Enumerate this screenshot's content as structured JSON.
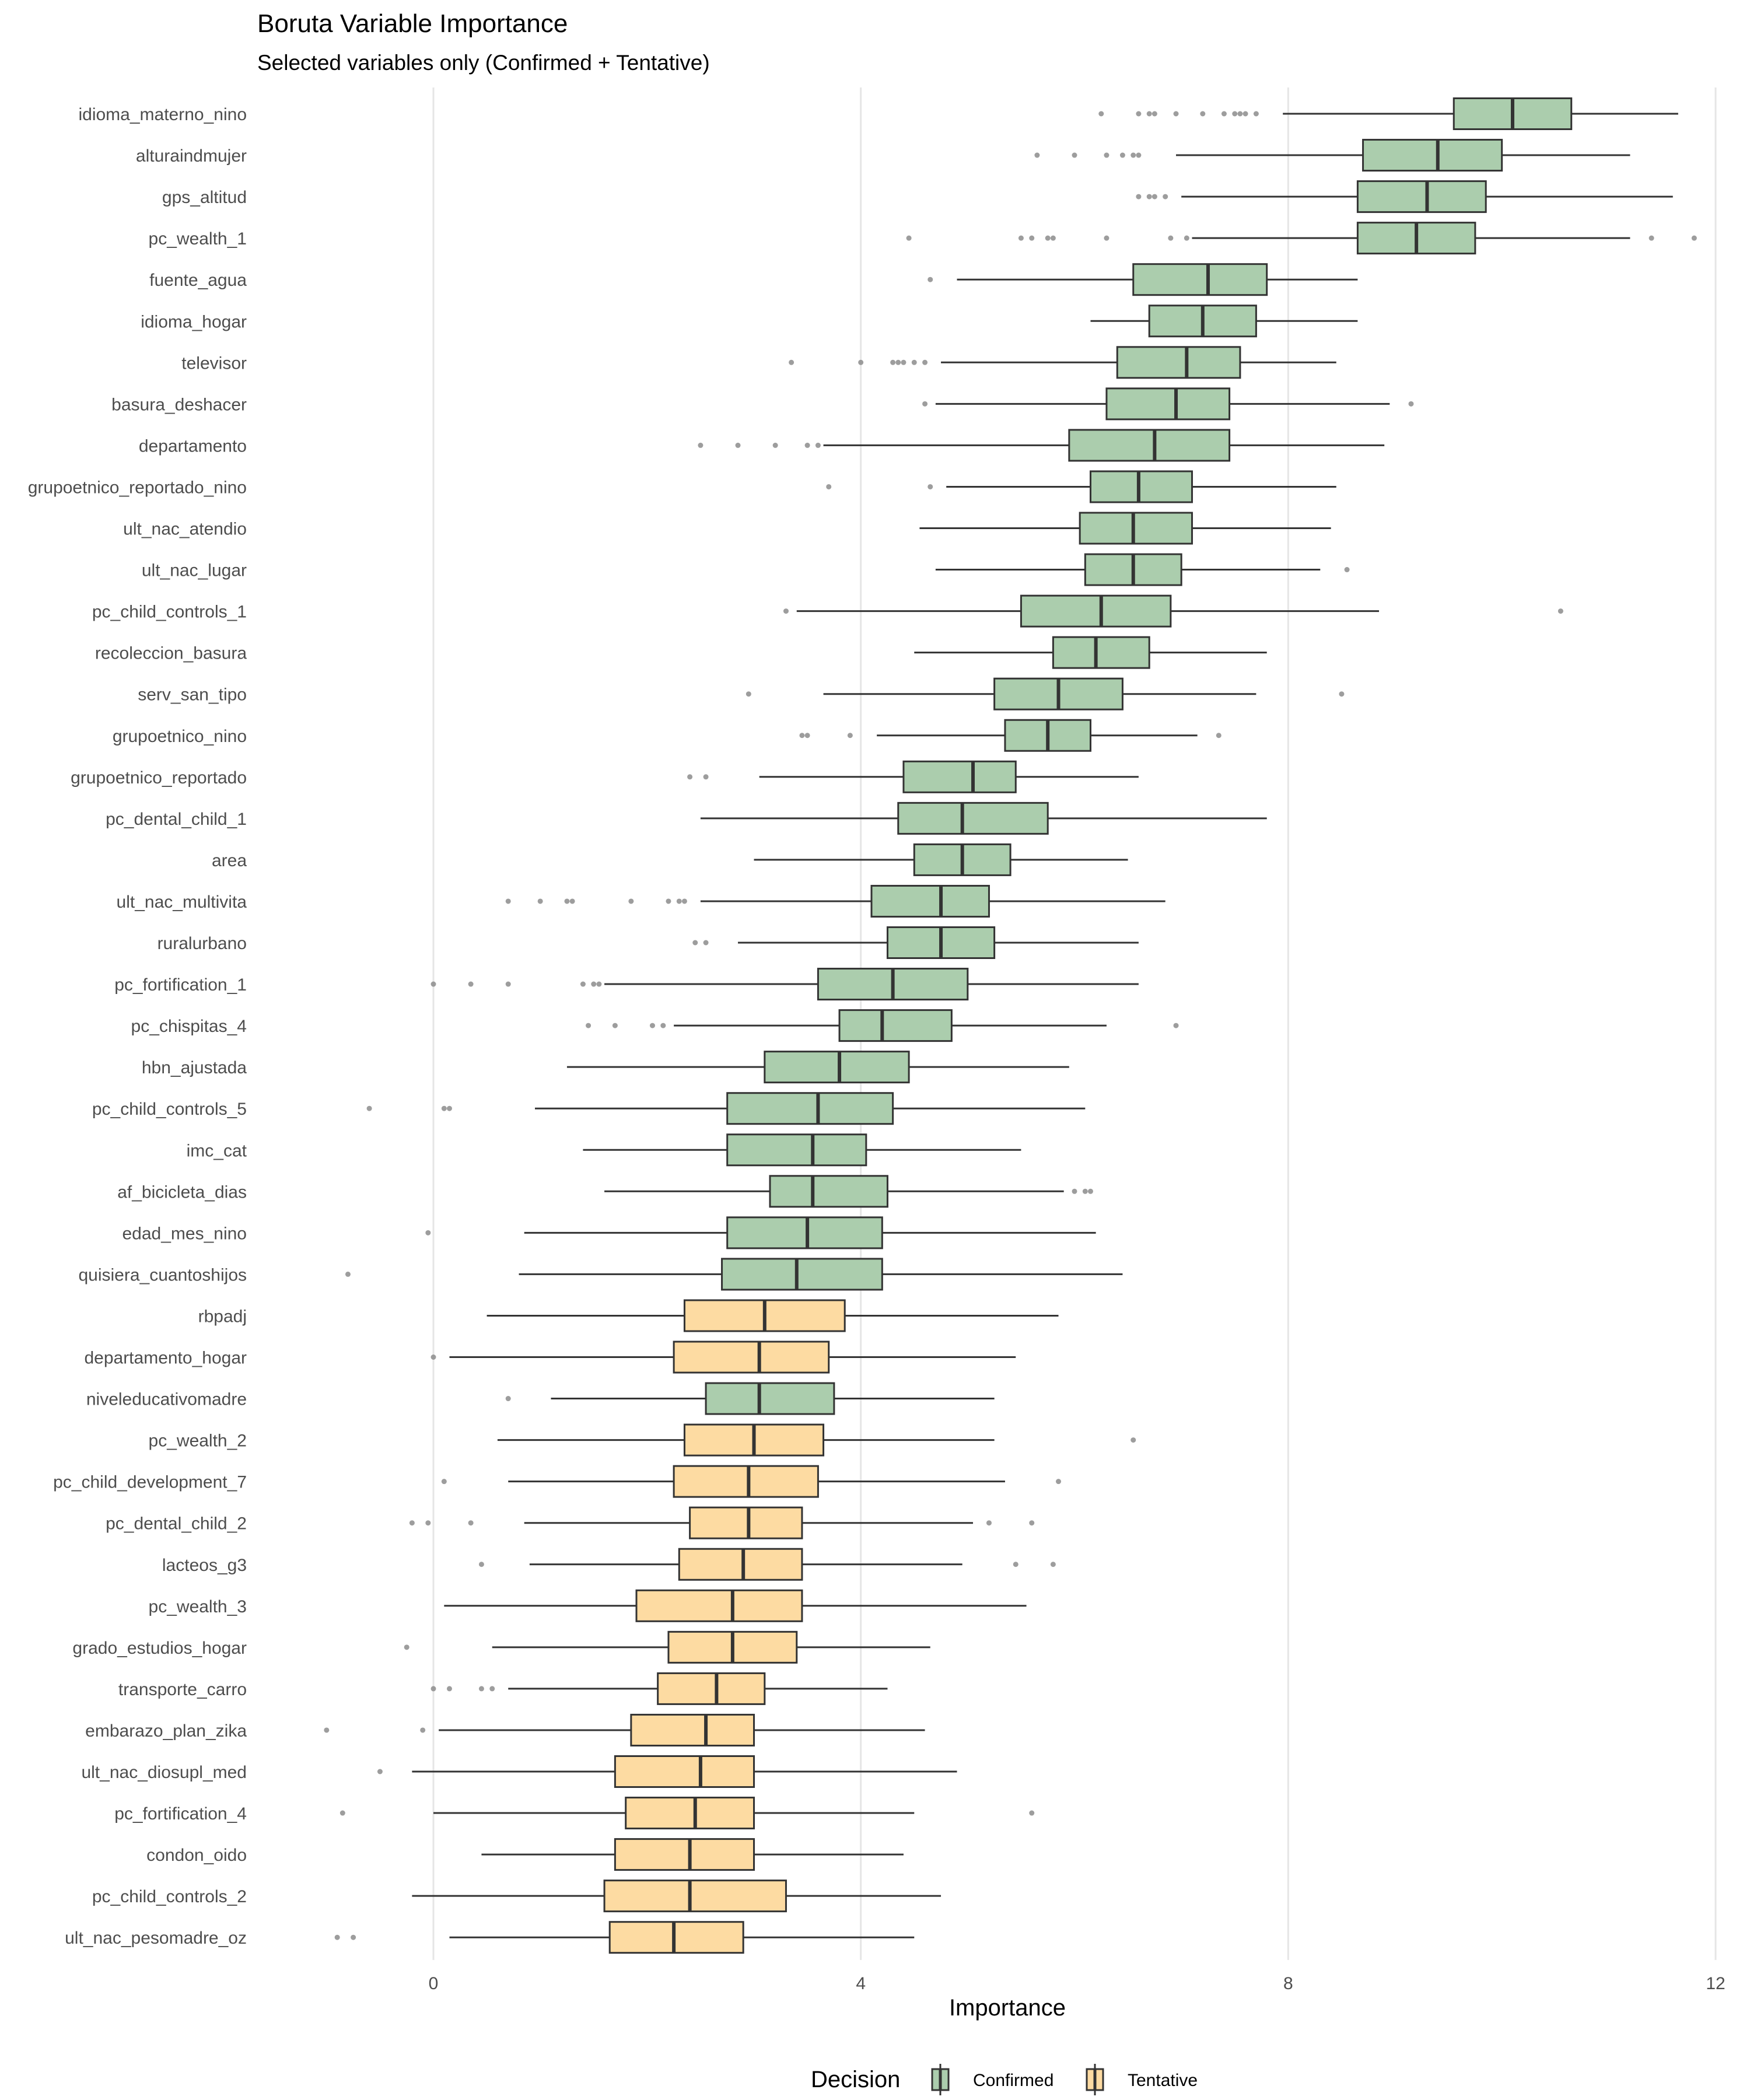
{
  "chart_data": {
    "type": "boxplot",
    "title": "Boruta Variable Importance",
    "subtitle": "Selected variables only (Confirmed + Tentative)",
    "xlabel": "Importance",
    "ylabel": "",
    "xlim": [
      -1.7,
      12.2
    ],
    "x_ticks": [
      0,
      4,
      8,
      12
    ],
    "grid": "vertical-major",
    "legend": {
      "title": "Decision",
      "position": "bottom",
      "entries": [
        {
          "label": "Confirmed",
          "color": "#abcdad"
        },
        {
          "label": "Tentative",
          "color": "#fddba2"
        }
      ]
    },
    "colors": {
      "Confirmed": "#abcdad",
      "Tentative": "#fddba2",
      "outline": "#333333",
      "outlier": "#8c8c8c",
      "grid": "#e6e6e6"
    },
    "variables": [
      {
        "name": "idioma_materno_nino",
        "decision": "Confirmed",
        "whisker_low": 7.95,
        "q1": 9.55,
        "median": 10.1,
        "q3": 10.65,
        "whisker_high": 11.65,
        "outliers": [
          6.25,
          6.6,
          6.7,
          6.75,
          6.95,
          7.2,
          7.4,
          7.5,
          7.55,
          7.6,
          7.7
        ]
      },
      {
        "name": "alturaindmujer",
        "decision": "Confirmed",
        "whisker_low": 6.95,
        "q1": 8.7,
        "median": 9.4,
        "q3": 10.0,
        "whisker_high": 11.2,
        "outliers": [
          5.65,
          6.0,
          6.3,
          6.45,
          6.55,
          6.6
        ]
      },
      {
        "name": "gps_altitud",
        "decision": "Confirmed",
        "whisker_low": 7.0,
        "q1": 8.65,
        "median": 9.3,
        "q3": 9.85,
        "whisker_high": 11.6,
        "outliers": [
          6.6,
          6.7,
          6.75,
          6.85
        ]
      },
      {
        "name": "pc_wealth_1",
        "decision": "Confirmed",
        "whisker_low": 7.1,
        "q1": 8.65,
        "median": 9.2,
        "q3": 9.75,
        "whisker_high": 11.2,
        "outliers": [
          4.45,
          5.5,
          5.6,
          5.75,
          5.8,
          6.3,
          6.9,
          7.05,
          11.4,
          11.8
        ]
      },
      {
        "name": "fuente_agua",
        "decision": "Confirmed",
        "whisker_low": 4.9,
        "q1": 6.55,
        "median": 7.25,
        "q3": 7.8,
        "whisker_high": 8.65,
        "outliers": [
          4.65
        ]
      },
      {
        "name": "idioma_hogar",
        "decision": "Confirmed",
        "whisker_low": 6.15,
        "q1": 6.7,
        "median": 7.2,
        "q3": 7.7,
        "whisker_high": 8.65,
        "outliers": []
      },
      {
        "name": "televisor",
        "decision": "Confirmed",
        "whisker_low": 4.75,
        "q1": 6.4,
        "median": 7.05,
        "q3": 7.55,
        "whisker_high": 8.45,
        "outliers": [
          3.35,
          4.0,
          4.3,
          4.35,
          4.4,
          4.5,
          4.6
        ]
      },
      {
        "name": "basura_deshacer",
        "decision": "Confirmed",
        "whisker_low": 4.7,
        "q1": 6.3,
        "median": 6.95,
        "q3": 7.45,
        "whisker_high": 8.95,
        "outliers": [
          4.6,
          9.15
        ]
      },
      {
        "name": "departamento",
        "decision": "Confirmed",
        "whisker_low": 3.65,
        "q1": 5.95,
        "median": 6.75,
        "q3": 7.45,
        "whisker_high": 8.9,
        "outliers": [
          2.5,
          2.85,
          3.2,
          3.5,
          3.6
        ]
      },
      {
        "name": "grupoetnico_reportado_nino",
        "decision": "Confirmed",
        "whisker_low": 4.8,
        "q1": 6.15,
        "median": 6.6,
        "q3": 7.1,
        "whisker_high": 8.45,
        "outliers": [
          3.7,
          4.65
        ]
      },
      {
        "name": "ult_nac_atendio",
        "decision": "Confirmed",
        "whisker_low": 4.55,
        "q1": 6.05,
        "median": 6.55,
        "q3": 7.1,
        "whisker_high": 8.4,
        "outliers": []
      },
      {
        "name": "ult_nac_lugar",
        "decision": "Confirmed",
        "whisker_low": 4.7,
        "q1": 6.1,
        "median": 6.55,
        "q3": 7.0,
        "whisker_high": 8.3,
        "outliers": [
          8.55
        ]
      },
      {
        "name": "pc_child_controls_1",
        "decision": "Confirmed",
        "whisker_low": 3.4,
        "q1": 5.5,
        "median": 6.25,
        "q3": 6.9,
        "whisker_high": 8.85,
        "outliers": [
          3.3,
          10.55
        ]
      },
      {
        "name": "recoleccion_basura",
        "decision": "Confirmed",
        "whisker_low": 4.5,
        "q1": 5.8,
        "median": 6.2,
        "q3": 6.7,
        "whisker_high": 7.8,
        "outliers": []
      },
      {
        "name": "serv_san_tipo",
        "decision": "Confirmed",
        "whisker_low": 3.65,
        "q1": 5.25,
        "median": 5.85,
        "q3": 6.45,
        "whisker_high": 7.7,
        "outliers": [
          2.95,
          8.5
        ]
      },
      {
        "name": "grupoetnico_nino",
        "decision": "Confirmed",
        "whisker_low": 4.15,
        "q1": 5.35,
        "median": 5.75,
        "q3": 6.15,
        "whisker_high": 7.15,
        "outliers": [
          3.45,
          3.5,
          3.9,
          7.35
        ]
      },
      {
        "name": "grupoetnico_reportado",
        "decision": "Confirmed",
        "whisker_low": 3.05,
        "q1": 4.4,
        "median": 5.05,
        "q3": 5.45,
        "whisker_high": 6.6,
        "outliers": [
          2.4,
          2.55
        ]
      },
      {
        "name": "pc_dental_child_1",
        "decision": "Confirmed",
        "whisker_low": 2.5,
        "q1": 4.35,
        "median": 4.95,
        "q3": 5.75,
        "whisker_high": 7.8,
        "outliers": []
      },
      {
        "name": "area",
        "decision": "Confirmed",
        "whisker_low": 3.0,
        "q1": 4.5,
        "median": 4.95,
        "q3": 5.4,
        "whisker_high": 6.5,
        "outliers": []
      },
      {
        "name": "ult_nac_multivita",
        "decision": "Confirmed",
        "whisker_low": 2.5,
        "q1": 4.1,
        "median": 4.75,
        "q3": 5.2,
        "whisker_high": 6.85,
        "outliers": [
          0.7,
          1.0,
          1.25,
          1.3,
          1.85,
          2.2,
          2.3,
          2.35
        ]
      },
      {
        "name": "ruralurbano",
        "decision": "Confirmed",
        "whisker_low": 2.85,
        "q1": 4.25,
        "median": 4.75,
        "q3": 5.25,
        "whisker_high": 6.6,
        "outliers": [
          2.45,
          2.55
        ]
      },
      {
        "name": "pc_fortification_1",
        "decision": "Confirmed",
        "whisker_low": 1.6,
        "q1": 3.6,
        "median": 4.3,
        "q3": 5.0,
        "whisker_high": 6.6,
        "outliers": [
          0.0,
          0.35,
          0.7,
          1.4,
          1.5,
          1.55
        ]
      },
      {
        "name": "pc_chispitas_4",
        "decision": "Confirmed",
        "whisker_low": 2.25,
        "q1": 3.8,
        "median": 4.2,
        "q3": 4.85,
        "whisker_high": 6.3,
        "outliers": [
          1.45,
          1.7,
          2.05,
          2.15,
          6.95
        ]
      },
      {
        "name": "hbn_ajustada",
        "decision": "Confirmed",
        "whisker_low": 1.25,
        "q1": 3.1,
        "median": 3.8,
        "q3": 4.45,
        "whisker_high": 5.95,
        "outliers": []
      },
      {
        "name": "pc_child_controls_5",
        "decision": "Confirmed",
        "whisker_low": 0.95,
        "q1": 2.75,
        "median": 3.6,
        "q3": 4.3,
        "whisker_high": 6.1,
        "outliers": [
          -0.6,
          0.1,
          0.15
        ]
      },
      {
        "name": "imc_cat",
        "decision": "Confirmed",
        "whisker_low": 1.4,
        "q1": 2.75,
        "median": 3.55,
        "q3": 4.05,
        "whisker_high": 5.5,
        "outliers": []
      },
      {
        "name": "af_bicicleta_dias",
        "decision": "Confirmed",
        "whisker_low": 1.6,
        "q1": 3.15,
        "median": 3.55,
        "q3": 4.25,
        "whisker_high": 5.9,
        "outliers": [
          6.0,
          6.1,
          6.15
        ]
      },
      {
        "name": "edad_mes_nino",
        "decision": "Confirmed",
        "whisker_low": 0.85,
        "q1": 2.75,
        "median": 3.5,
        "q3": 4.2,
        "whisker_high": 6.2,
        "outliers": [
          -0.05
        ]
      },
      {
        "name": "quisiera_cuantoshijos",
        "decision": "Confirmed",
        "whisker_low": 0.8,
        "q1": 2.7,
        "median": 3.4,
        "q3": 4.2,
        "whisker_high": 6.45,
        "outliers": [
          -0.8
        ]
      },
      {
        "name": "rbpadj",
        "decision": "Tentative",
        "whisker_low": 0.5,
        "q1": 2.35,
        "median": 3.1,
        "q3": 3.85,
        "whisker_high": 5.85,
        "outliers": []
      },
      {
        "name": "departamento_hogar",
        "decision": "Tentative",
        "whisker_low": 0.15,
        "q1": 2.25,
        "median": 3.05,
        "q3": 3.7,
        "whisker_high": 5.45,
        "outliers": [
          0.0
        ]
      },
      {
        "name": "niveleducativomadre",
        "decision": "Confirmed",
        "whisker_low": 1.1,
        "q1": 2.55,
        "median": 3.05,
        "q3": 3.75,
        "whisker_high": 5.25,
        "outliers": [
          0.7
        ]
      },
      {
        "name": "pc_wealth_2",
        "decision": "Tentative",
        "whisker_low": 0.6,
        "q1": 2.35,
        "median": 3.0,
        "q3": 3.65,
        "whisker_high": 5.25,
        "outliers": [
          6.55
        ]
      },
      {
        "name": "pc_child_development_7",
        "decision": "Tentative",
        "whisker_low": 0.7,
        "q1": 2.25,
        "median": 2.95,
        "q3": 3.6,
        "whisker_high": 5.35,
        "outliers": [
          0.1,
          5.85
        ]
      },
      {
        "name": "pc_dental_child_2",
        "decision": "Tentative",
        "whisker_low": 0.85,
        "q1": 2.4,
        "median": 2.95,
        "q3": 3.45,
        "whisker_high": 5.05,
        "outliers": [
          -0.2,
          -0.05,
          0.35,
          5.2,
          5.6
        ]
      },
      {
        "name": "lacteos_g3",
        "decision": "Tentative",
        "whisker_low": 0.9,
        "q1": 2.3,
        "median": 2.9,
        "q3": 3.45,
        "whisker_high": 4.95,
        "outliers": [
          0.45,
          5.45,
          5.8
        ]
      },
      {
        "name": "pc_wealth_3",
        "decision": "Tentative",
        "whisker_low": 0.1,
        "q1": 1.9,
        "median": 2.8,
        "q3": 3.45,
        "whisker_high": 5.55,
        "outliers": []
      },
      {
        "name": "grado_estudios_hogar",
        "decision": "Tentative",
        "whisker_low": 0.55,
        "q1": 2.2,
        "median": 2.8,
        "q3": 3.4,
        "whisker_high": 4.65,
        "outliers": [
          -0.25
        ]
      },
      {
        "name": "transporte_carro",
        "decision": "Tentative",
        "whisker_low": 0.7,
        "q1": 2.1,
        "median": 2.65,
        "q3": 3.1,
        "whisker_high": 4.25,
        "outliers": [
          0.0,
          0.15,
          0.45,
          0.55
        ]
      },
      {
        "name": "embarazo_plan_zika",
        "decision": "Tentative",
        "whisker_low": 0.05,
        "q1": 1.85,
        "median": 2.55,
        "q3": 3.0,
        "whisker_high": 4.6,
        "outliers": [
          -1.0,
          -0.1
        ]
      },
      {
        "name": "ult_nac_diosupl_med",
        "decision": "Tentative",
        "whisker_low": -0.2,
        "q1": 1.7,
        "median": 2.5,
        "q3": 3.0,
        "whisker_high": 4.9,
        "outliers": [
          -0.5
        ]
      },
      {
        "name": "pc_fortification_4",
        "decision": "Tentative",
        "whisker_low": 0.0,
        "q1": 1.8,
        "median": 2.45,
        "q3": 3.0,
        "whisker_high": 4.5,
        "outliers": [
          -0.85,
          5.6
        ]
      },
      {
        "name": "condon_oido",
        "decision": "Tentative",
        "whisker_low": 0.45,
        "q1": 1.7,
        "median": 2.4,
        "q3": 3.0,
        "whisker_high": 4.4,
        "outliers": []
      },
      {
        "name": "pc_child_controls_2",
        "decision": "Tentative",
        "whisker_low": -0.2,
        "q1": 1.6,
        "median": 2.4,
        "q3": 3.3,
        "whisker_high": 4.75,
        "outliers": []
      },
      {
        "name": "ult_nac_pesomadre_oz",
        "decision": "Tentative",
        "whisker_low": 0.15,
        "q1": 1.65,
        "median": 2.25,
        "q3": 2.9,
        "whisker_high": 4.5,
        "outliers": [
          -0.9,
          -0.75
        ]
      }
    ]
  }
}
